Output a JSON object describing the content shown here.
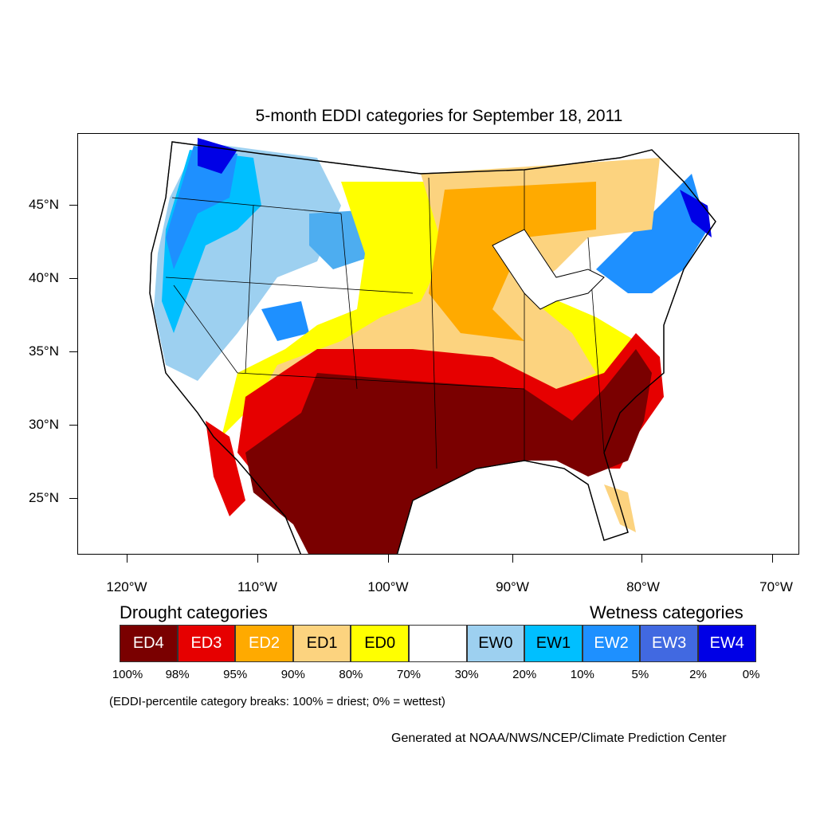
{
  "title": "5-month EDDI categories for September 18, 2011",
  "lat_labels": [
    "45°N",
    "40°N",
    "35°N",
    "30°N",
    "25°N"
  ],
  "lon_labels": [
    "120°W",
    "110°W",
    "100°W",
    "90°W",
    "80°W",
    "70°W"
  ],
  "legend": {
    "drought_label": "Drought categories",
    "wetness_label": "Wetness categories",
    "categories": [
      {
        "label": "ED4",
        "color": "#7a0000",
        "text_color": "#ffffff"
      },
      {
        "label": "ED3",
        "color": "#e60000",
        "text_color": "#ffffff"
      },
      {
        "label": "ED2",
        "color": "#ffaa00",
        "text_color": "#ffffff"
      },
      {
        "label": "ED1",
        "color": "#fcd37f",
        "text_color": "#000000"
      },
      {
        "label": "ED0",
        "color": "#ffff00",
        "text_color": "#000000"
      },
      {
        "label": "",
        "color": "#ffffff",
        "text_color": "#000000"
      },
      {
        "label": "EW0",
        "color": "#9dd0f0",
        "text_color": "#000000"
      },
      {
        "label": "EW1",
        "color": "#00bfff",
        "text_color": "#000000"
      },
      {
        "label": "EW2",
        "color": "#1e90ff",
        "text_color": "#ffffff"
      },
      {
        "label": "EW3",
        "color": "#4169e1",
        "text_color": "#ffffff"
      },
      {
        "label": "EW4",
        "color": "#0000e6",
        "text_color": "#ffffff"
      }
    ],
    "breaks": [
      "100%",
      "98%",
      "95%",
      "90%",
      "80%",
      "70%",
      "30%",
      "20%",
      "10%",
      "5%",
      "2%",
      "0%"
    ]
  },
  "note": "(EDDI-percentile category breaks: 100% = driest; 0% = wettest)",
  "credit": "Generated at NOAA/NWS/NCEP/Climate Prediction Center"
}
